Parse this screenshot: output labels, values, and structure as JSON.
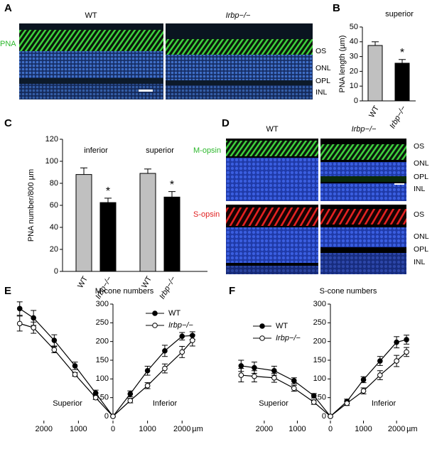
{
  "panels": {
    "A": {
      "letter": "A",
      "labels": [
        "WT",
        "Irbp−/−"
      ],
      "stain": "PNA",
      "layers": [
        "OS",
        "ONL",
        "OPL",
        "INL"
      ]
    },
    "D": {
      "letter": "D",
      "labels": [
        "WT",
        "Irbp−/−"
      ],
      "stains": [
        "M-opsin",
        "S-opsin"
      ],
      "layers": [
        "OS",
        "ONL",
        "OPL",
        "INL"
      ]
    }
  },
  "chart_data": [
    {
      "type": "bar",
      "panel": "B",
      "title": "superior",
      "ylabel": "PNA length (µm)",
      "categories": [
        "WT",
        "Irbp−/−"
      ],
      "values": [
        37.5,
        25.5
      ],
      "errors": [
        2.5,
        2.5
      ],
      "colors": [
        "#c0c0c0",
        "#000000"
      ],
      "ylim": [
        0,
        50
      ],
      "yticks": [
        0,
        10,
        20,
        30,
        40,
        50
      ],
      "annotations": [
        {
          "text": "*",
          "index": 1
        }
      ]
    },
    {
      "type": "bar",
      "panel": "C",
      "ylabel": "PNA number/800 µm",
      "groups": [
        "inferior",
        "superior"
      ],
      "categories": [
        "WT",
        "Irbp−/−",
        "WT",
        "Irbp−/−"
      ],
      "values": [
        88,
        62.5,
        89,
        67.5
      ],
      "errors": [
        6,
        4,
        4,
        5
      ],
      "colors": [
        "#c0c0c0",
        "#000000",
        "#c0c0c0",
        "#000000"
      ],
      "ylim": [
        0,
        120
      ],
      "yticks": [
        0,
        20,
        40,
        60,
        80,
        100,
        120
      ],
      "annotations": [
        {
          "text": "*",
          "index": 1
        },
        {
          "text": "*",
          "index": 3
        }
      ]
    },
    {
      "type": "line",
      "panel": "E",
      "title": "M-cone numbers",
      "xlabel": "µm",
      "x": [
        -2700,
        -2300,
        -1700,
        -1100,
        -500,
        0,
        500,
        1000,
        1500,
        2000,
        2300
      ],
      "series": [
        {
          "name": "WT",
          "color": "#000000",
          "marker_fill": "#000000",
          "values": [
            288,
            263,
            203,
            135,
            62,
            0,
            60,
            122,
            175,
            214,
            216
          ],
          "errors": [
            18,
            20,
            15,
            10,
            8,
            0,
            8,
            12,
            15,
            10,
            10
          ]
        },
        {
          "name": "Irbp−/−",
          "color": "#000000",
          "marker_fill": "#ffffff",
          "values": [
            248,
            237,
            178,
            112,
            50,
            0,
            42,
            82,
            128,
            172,
            203
          ],
          "errors": [
            20,
            15,
            8,
            5,
            5,
            0,
            6,
            8,
            12,
            15,
            15
          ]
        }
      ],
      "xlim": [
        -2900,
        2900
      ],
      "ylim": [
        0,
        300
      ],
      "yticks": [
        0,
        50,
        100,
        150,
        200,
        250,
        300
      ],
      "xticks": [
        {
          "value": -2000,
          "label": "2000"
        },
        {
          "value": -1000,
          "label": "1000"
        },
        0,
        1000,
        2000
      ],
      "annotations": [
        "Superior",
        "Inferior"
      ]
    },
    {
      "type": "line",
      "panel": "F",
      "title": "S-cone numbers",
      "xlabel": "µm",
      "x": [
        -2700,
        -2300,
        -1700,
        -1100,
        -500,
        0,
        500,
        1000,
        1500,
        2000,
        2300
      ],
      "series": [
        {
          "name": "WT",
          "color": "#000000",
          "marker_fill": "#000000",
          "values": [
            135,
            130,
            122,
            95,
            55,
            0,
            40,
            98,
            148,
            198,
            205
          ],
          "errors": [
            15,
            15,
            12,
            8,
            6,
            0,
            6,
            8,
            12,
            15,
            12
          ]
        },
        {
          "name": "Irbp−/−",
          "color": "#000000",
          "marker_fill": "#ffffff",
          "values": [
            110,
            107,
            103,
            75,
            38,
            0,
            35,
            68,
            110,
            148,
            172
          ],
          "errors": [
            18,
            15,
            12,
            8,
            6,
            0,
            6,
            8,
            12,
            15,
            12
          ]
        }
      ],
      "xlim": [
        -2900,
        2900
      ],
      "ylim": [
        0,
        300
      ],
      "yticks": [
        0,
        50,
        100,
        150,
        200,
        250,
        300
      ],
      "xticks": [
        {
          "value": -2000,
          "label": "2000"
        },
        {
          "value": -1000,
          "label": "1000"
        },
        0,
        1000,
        2000
      ],
      "annotations": [
        "Superior",
        "Inferior"
      ]
    }
  ]
}
